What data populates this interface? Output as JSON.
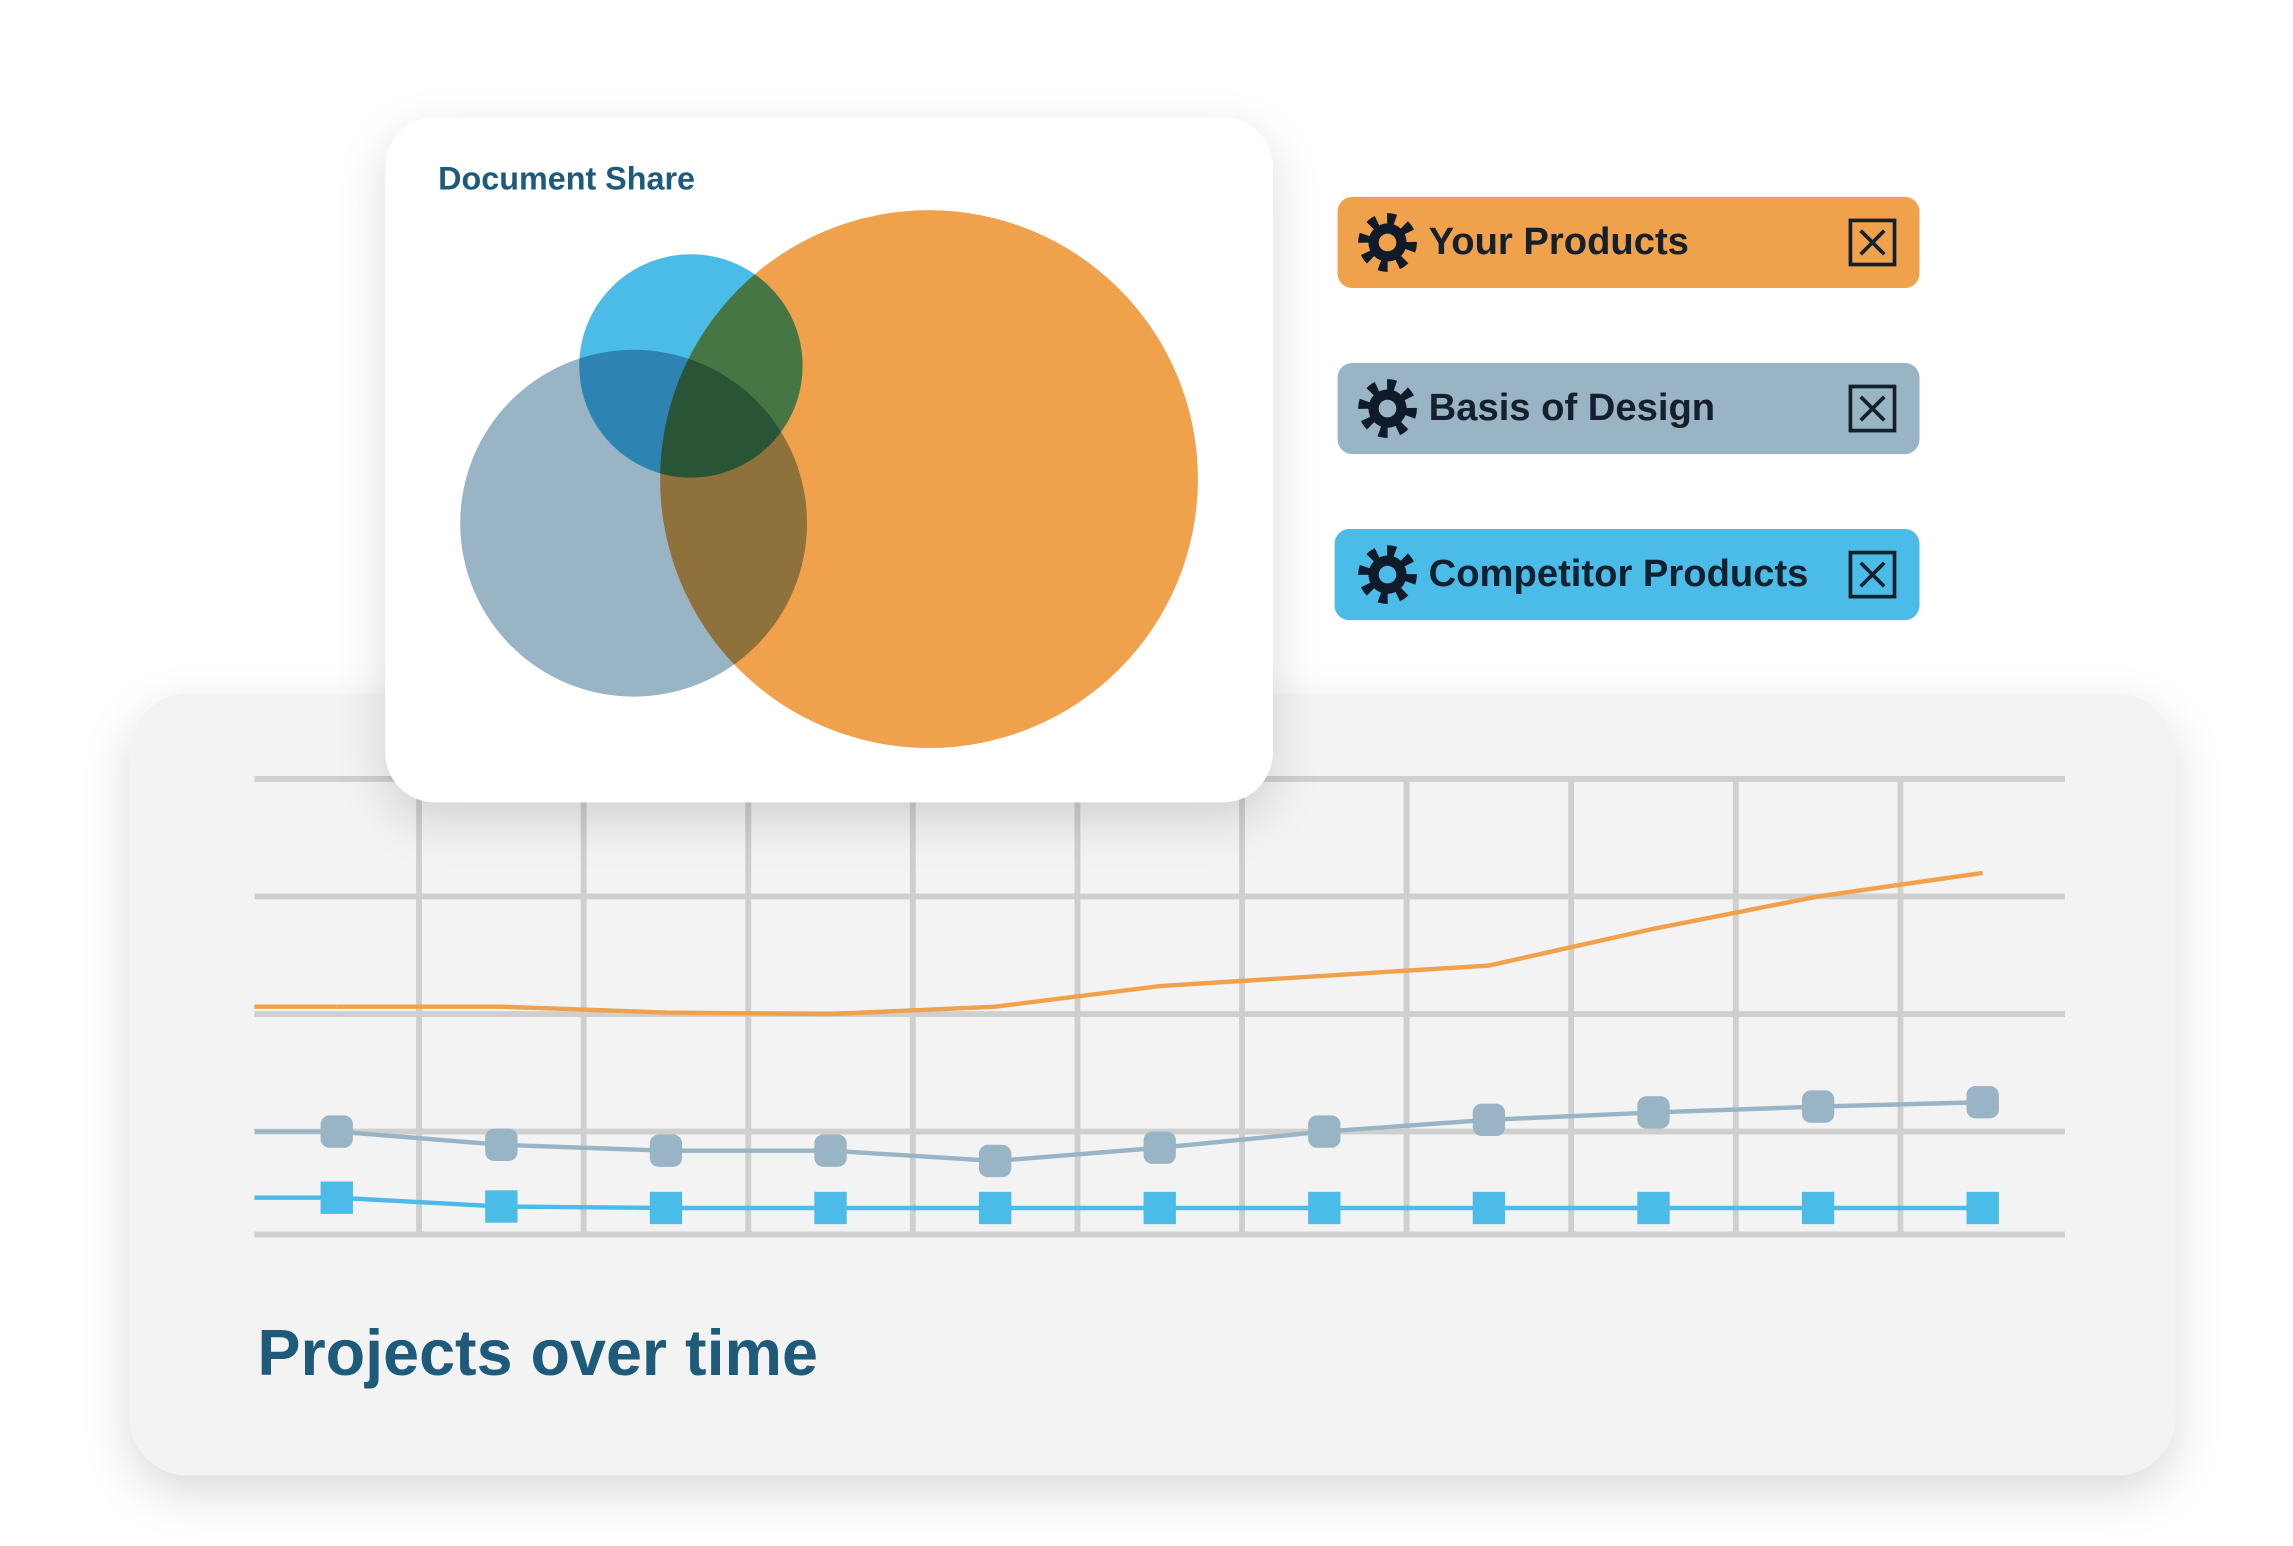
{
  "venn_card": {
    "title": "Document Share"
  },
  "chart_data": {
    "type": "line",
    "title": "Projects over time",
    "categories": [
      null,
      null,
      null,
      null,
      null,
      null,
      null,
      null,
      null,
      null,
      null
    ],
    "series": [
      {
        "name": "Your Products",
        "color": "#f0a14c",
        "marker": "none",
        "values": [
          155,
          155,
          151,
          150,
          155,
          169,
          176,
          183,
          208,
          230,
          246
        ]
      },
      {
        "name": "Basis of Design",
        "color": "#98b4c5",
        "marker": "rounded-square",
        "values": [
          70,
          61,
          57,
          57,
          50,
          59,
          70,
          78,
          83,
          87,
          90
        ]
      },
      {
        "name": "Competitor Products",
        "color": "#4bbbe8",
        "marker": "square",
        "values": [
          25,
          19,
          18,
          18,
          18,
          18,
          18,
          18,
          18,
          18,
          18
        ]
      }
    ],
    "ylim": [
      0,
      310
    ],
    "yticks": [
      0,
      70,
      150,
      230,
      310
    ],
    "grid": true
  }
}
